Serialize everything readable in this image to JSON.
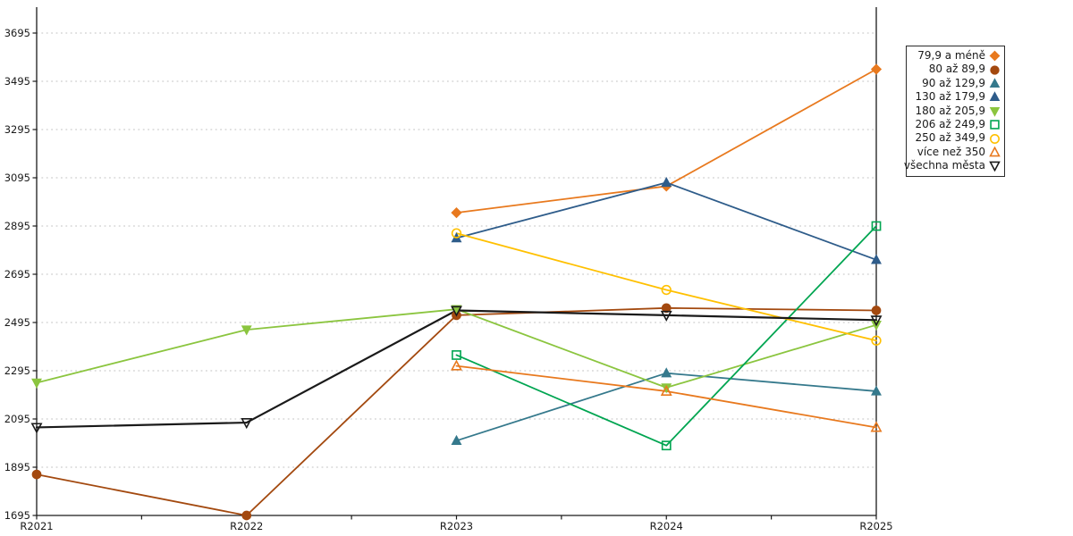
{
  "chart_data": {
    "type": "line",
    "title": "",
    "xlabel": "",
    "ylabel": "",
    "x_categories": [
      "R2021",
      "R2022",
      "R2023",
      "R2024",
      "R2025"
    ],
    "y_tick_labels": [
      "1695",
      "1895",
      "2095",
      "2295",
      "2495",
      "2695",
      "2895",
      "3095",
      "3295",
      "3495",
      "3695"
    ],
    "ylim": [
      1695,
      3695
    ],
    "y_tick_step": 200,
    "grid": "horizontal-dashed",
    "gridline_color": "#c0c0c0",
    "axis_color": "#1a1a1a",
    "legend_position": "outside-top-right",
    "series": [
      {
        "name": "79,9 a méně",
        "color": "#E8791E",
        "marker": "diamond",
        "marker_style": "filled",
        "values": [
          null,
          null,
          2950,
          3060,
          3545
        ]
      },
      {
        "name": "80 až 89,9",
        "color": "#A3490F",
        "marker": "circle",
        "marker_style": "filled",
        "values": [
          1865,
          1695,
          2525,
          2555,
          2545
        ]
      },
      {
        "name": "90 až 129,9",
        "color": "#35798C",
        "marker": "triangle-up",
        "marker_style": "filled",
        "values": [
          null,
          null,
          2005,
          2285,
          2210
        ]
      },
      {
        "name": "130 až 179,9",
        "color": "#2E5C8A",
        "marker": "triangle-up",
        "marker_style": "filled",
        "values": [
          null,
          null,
          2845,
          3075,
          2755
        ]
      },
      {
        "name": "180 až 205,9",
        "color": "#8BC53F",
        "marker": "triangle-down",
        "marker_style": "filled",
        "values": [
          2245,
          2465,
          2550,
          2225,
          2485
        ]
      },
      {
        "name": "206 až 249,9",
        "color": "#00A551",
        "marker": "square",
        "marker_style": "hollow",
        "values": [
          null,
          null,
          2360,
          1985,
          2895
        ]
      },
      {
        "name": "250 až 349,9",
        "color": "#FFC000",
        "marker": "circle",
        "marker_style": "hollow",
        "values": [
          null,
          null,
          2865,
          2630,
          2420
        ]
      },
      {
        "name": "více než 350",
        "color": "#E8791E",
        "marker": "triangle-up",
        "marker_style": "hollow",
        "values": [
          null,
          null,
          2315,
          2210,
          2060
        ]
      },
      {
        "name": "všechna města",
        "color": "#1A1A1A",
        "marker": "triangle-down",
        "marker_style": "hollow",
        "values": [
          2060,
          2080,
          2545,
          2525,
          2505
        ]
      }
    ]
  }
}
